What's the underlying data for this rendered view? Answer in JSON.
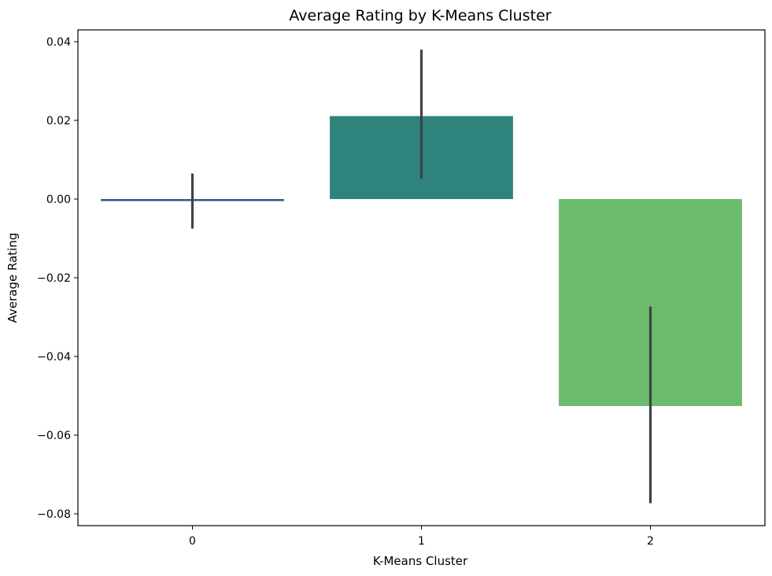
{
  "chart_data": {
    "type": "bar",
    "title": "Average Rating by K-Means Cluster",
    "xlabel": "K-Means Cluster",
    "ylabel": "Average Rating",
    "categories": [
      "0",
      "1",
      "2"
    ],
    "values": [
      -0.0005,
      0.0211,
      -0.0526
    ],
    "error_bars": [
      {
        "low": -0.0075,
        "high": 0.0065
      },
      {
        "low": 0.0052,
        "high": 0.038
      },
      {
        "low": -0.0773,
        "high": -0.0273
      }
    ],
    "colors": [
      "#3b528b",
      "#2e837c",
      "#6bbc6c"
    ],
    "errorbar_color": "#424242",
    "ylim": [
      -0.083,
      0.043
    ],
    "yticks": [
      0.04,
      0.02,
      0.0,
      -0.02,
      -0.04,
      -0.06,
      -0.08
    ],
    "ytick_labels": [
      "0.04",
      "0.02",
      "0.00",
      "−0.02",
      "−0.04",
      "−0.06",
      "−0.08"
    ],
    "grid": false,
    "legend": "none"
  }
}
